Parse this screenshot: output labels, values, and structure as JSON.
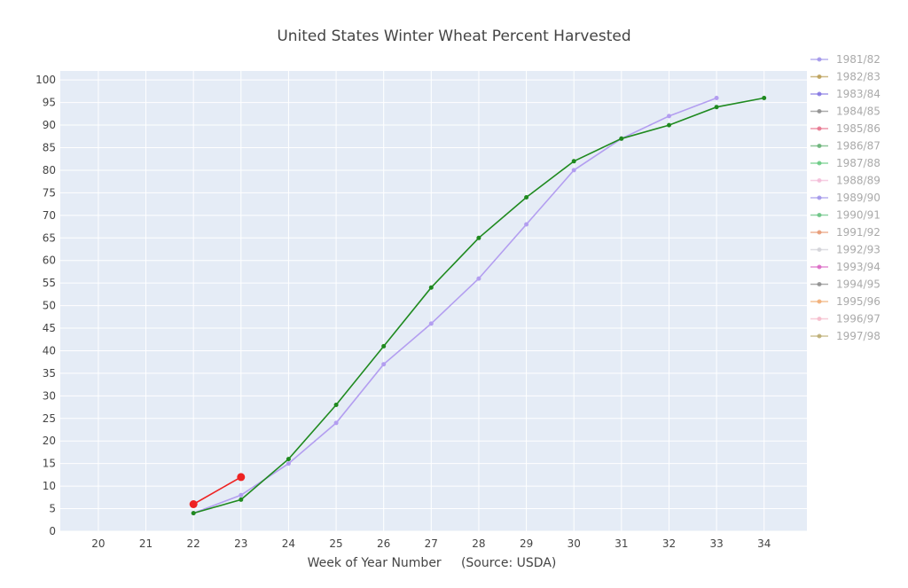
{
  "chart_data": {
    "type": "line",
    "title": "United States Winter Wheat Percent Harvested",
    "xlabel": "Week of Year Number     (Source: USDA)",
    "ylabel": "",
    "xlim": [
      19.2,
      34.9
    ],
    "ylim": [
      0,
      102
    ],
    "x_ticks": [
      20,
      21,
      22,
      23,
      24,
      25,
      26,
      27,
      28,
      29,
      30,
      31,
      32,
      33,
      34
    ],
    "y_ticks": [
      0,
      5,
      10,
      15,
      20,
      25,
      30,
      35,
      40,
      45,
      50,
      55,
      60,
      65,
      70,
      75,
      80,
      85,
      90,
      95,
      100
    ],
    "grid": true,
    "legend_position": "right",
    "legend": [
      {
        "name": "1981/82",
        "color": "#9b8ee8"
      },
      {
        "name": "1982/83",
        "color": "#b89a4e"
      },
      {
        "name": "1983/84",
        "color": "#7d6ee0"
      },
      {
        "name": "1984/85",
        "color": "#888888"
      },
      {
        "name": "1985/86",
        "color": "#e66b86"
      },
      {
        "name": "1986/87",
        "color": "#5fae6e"
      },
      {
        "name": "1987/88",
        "color": "#5fc77a"
      },
      {
        "name": "1988/89",
        "color": "#f2b8d6"
      },
      {
        "name": "1989/90",
        "color": "#9b8ee8"
      },
      {
        "name": "1990/91",
        "color": "#5fbf7a"
      },
      {
        "name": "1991/92",
        "color": "#e6946b"
      },
      {
        "name": "1992/93",
        "color": "#cfcfd6"
      },
      {
        "name": "1993/94",
        "color": "#d85fc0"
      },
      {
        "name": "1994/95",
        "color": "#888888"
      },
      {
        "name": "1995/96",
        "color": "#f0a86b"
      },
      {
        "name": "1996/97",
        "color": "#f5b6c8"
      },
      {
        "name": "1997/98",
        "color": "#b8a86a"
      }
    ],
    "series": [
      {
        "color": "#b39ef0",
        "marker_size": 2.5,
        "x": [
          22,
          23,
          24,
          25,
          26,
          27,
          28,
          29,
          30,
          31,
          32,
          33
        ],
        "y": [
          4,
          8,
          15,
          24,
          37,
          46,
          56,
          68,
          80,
          87,
          92,
          96
        ]
      },
      {
        "color": "#1f8a1f",
        "marker_size": 2.5,
        "x": [
          22,
          23,
          24,
          25,
          26,
          27,
          28,
          29,
          30,
          31,
          32,
          33,
          34
        ],
        "y": [
          4,
          7,
          16,
          28,
          41,
          54,
          65,
          74,
          82,
          87,
          90,
          94,
          96
        ]
      },
      {
        "color": "#ee2222",
        "marker_size": 4.5,
        "x": [
          22,
          23
        ],
        "y": [
          6,
          12
        ]
      }
    ]
  }
}
